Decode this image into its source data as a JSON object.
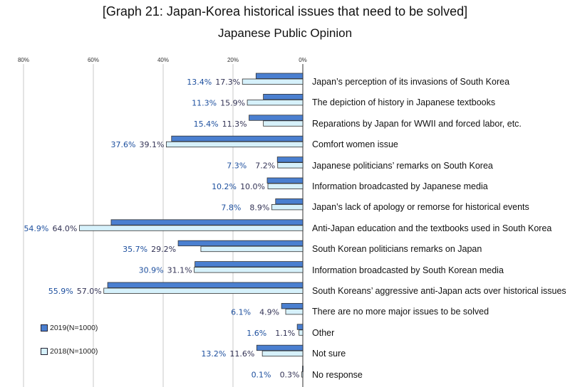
{
  "title": "[Graph 21: Japan-Korea historical issues that need to be solved]",
  "subtitle": "Japanese Public Opinion",
  "chart_data": {
    "type": "bar",
    "orientation": "horizontal-reversed",
    "title": "[Graph 21: Japan-Korea historical issues that need to be solved]",
    "subtitle": "Japanese Public Opinion",
    "xlim": [
      0,
      80
    ],
    "xticks": [
      "80%",
      "60%",
      "40%",
      "20%",
      "0%"
    ],
    "grid": true,
    "legend_position": "bottom-left",
    "categories": [
      "Japan’s perception of its invasions of South Korea",
      "The depiction of history in Japanese textbooks",
      "Reparations by Japan for WWII and forced labor, etc.",
      "Comfort women issue",
      "Japanese politicians’ remarks on  South Korea",
      "Information broadcasted by Japanese media",
      "Japan’s lack of apology or remorse for historical events",
      "Anti-Japan education and the textbooks used in South Korea",
      "South Korean politicians remarks on Japan",
      "Information broadcasted by South Korean media",
      "South Koreans’ aggressive anti-Japan acts over historical issues",
      "There are no more major issues to be solved",
      "Other",
      "Not sure",
      "No response"
    ],
    "series": [
      {
        "name": "2019(N=1000)",
        "color": "#4a7fd0",
        "values": [
          13.4,
          11.3,
          15.4,
          37.6,
          7.3,
          10.2,
          7.8,
          54.9,
          35.7,
          30.9,
          55.9,
          6.1,
          1.6,
          13.2,
          0.1
        ]
      },
      {
        "name": "2018(N=1000)",
        "color": "#d6f1fb",
        "values": [
          17.3,
          15.9,
          11.3,
          39.1,
          7.2,
          10.0,
          8.9,
          64.0,
          29.2,
          31.1,
          57.0,
          4.9,
          1.1,
          11.6,
          0.3
        ]
      }
    ]
  }
}
